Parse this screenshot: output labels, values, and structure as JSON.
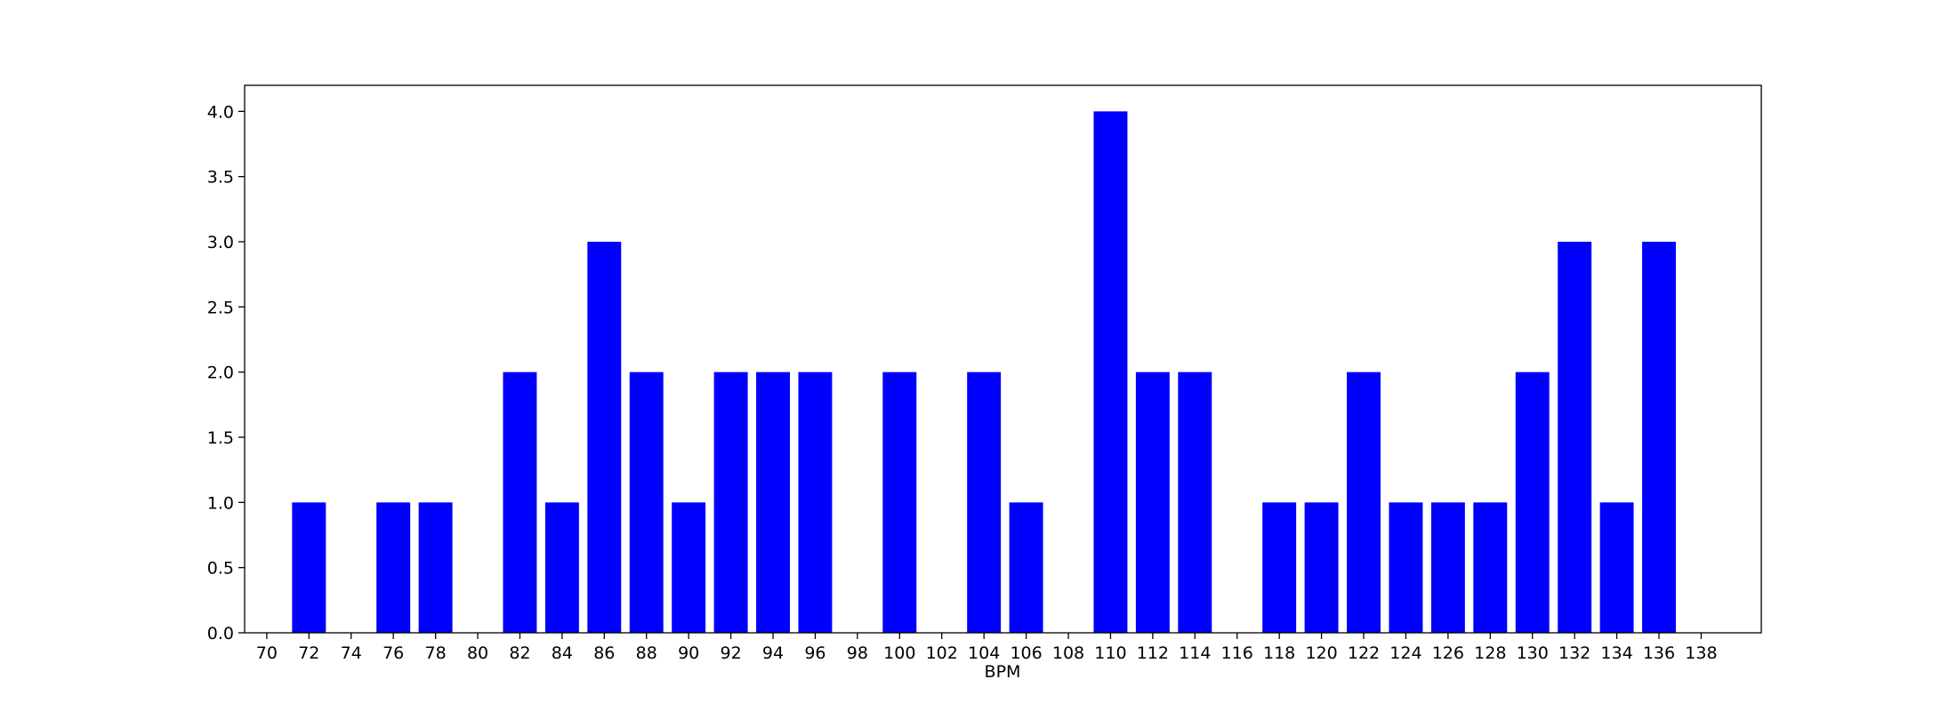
{
  "chart_data": {
    "type": "bar",
    "title": "",
    "xlabel": "BPM",
    "ylabel": "",
    "x_ticks": [
      70,
      72,
      74,
      76,
      78,
      80,
      82,
      84,
      86,
      88,
      90,
      92,
      94,
      96,
      98,
      100,
      102,
      104,
      106,
      108,
      110,
      112,
      114,
      116,
      118,
      120,
      122,
      124,
      126,
      128,
      130,
      132,
      134,
      136,
      138
    ],
    "xlim": [
      68.95,
      140.85
    ],
    "y_ticks": [
      "0.0",
      "0.5",
      "1.0",
      "1.5",
      "2.0",
      "2.5",
      "3.0",
      "3.5",
      "4.0"
    ],
    "ylim": [
      0,
      4.2
    ],
    "bar_width": 1.6,
    "bar_color": "#0000ff",
    "grid": false,
    "bars": [
      {
        "x": 70,
        "value": 0
      },
      {
        "x": 72,
        "value": 1
      },
      {
        "x": 74,
        "value": 0
      },
      {
        "x": 76,
        "value": 1
      },
      {
        "x": 78,
        "value": 1
      },
      {
        "x": 80,
        "value": 0
      },
      {
        "x": 82,
        "value": 2
      },
      {
        "x": 84,
        "value": 1
      },
      {
        "x": 86,
        "value": 3
      },
      {
        "x": 88,
        "value": 2
      },
      {
        "x": 90,
        "value": 1
      },
      {
        "x": 92,
        "value": 2
      },
      {
        "x": 94,
        "value": 2
      },
      {
        "x": 96,
        "value": 2
      },
      {
        "x": 98,
        "value": 0
      },
      {
        "x": 100,
        "value": 2
      },
      {
        "x": 102,
        "value": 0
      },
      {
        "x": 104,
        "value": 2
      },
      {
        "x": 106,
        "value": 1
      },
      {
        "x": 108,
        "value": 0
      },
      {
        "x": 110,
        "value": 4
      },
      {
        "x": 112,
        "value": 2
      },
      {
        "x": 114,
        "value": 2
      },
      {
        "x": 116,
        "value": 0
      },
      {
        "x": 118,
        "value": 1
      },
      {
        "x": 120,
        "value": 1
      },
      {
        "x": 122,
        "value": 2
      },
      {
        "x": 124,
        "value": 1
      },
      {
        "x": 126,
        "value": 1
      },
      {
        "x": 128,
        "value": 1
      },
      {
        "x": 130,
        "value": 2
      },
      {
        "x": 132,
        "value": 3
      },
      {
        "x": 134,
        "value": 1
      },
      {
        "x": 136,
        "value": 3
      },
      {
        "x": 138,
        "value": 0
      }
    ]
  }
}
